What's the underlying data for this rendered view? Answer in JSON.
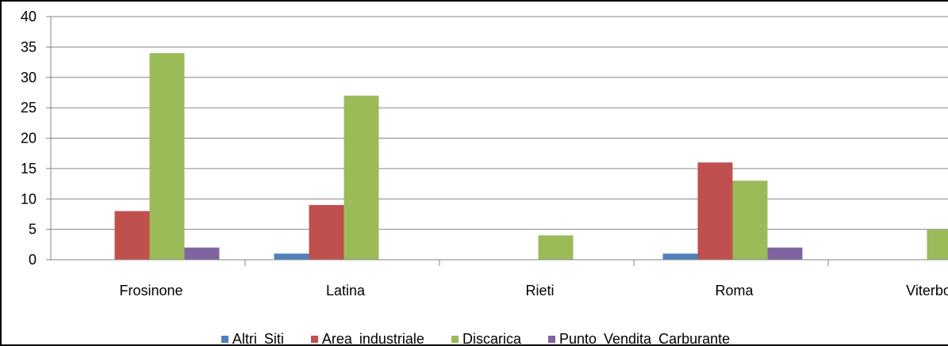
{
  "chart_data": {
    "type": "bar",
    "categories": [
      "Frosinone",
      "Latina",
      "Rieti",
      "Roma",
      "Viterbo"
    ],
    "series": [
      {
        "name": "Altri Siti",
        "color": "#4F81BD",
        "values": [
          0,
          1,
          0,
          1,
          0
        ]
      },
      {
        "name": "Area industriale",
        "color": "#C0504D",
        "values": [
          8,
          9,
          0,
          16,
          0
        ]
      },
      {
        "name": "Discarica",
        "color": "#9BBB59",
        "values": [
          34,
          27,
          4,
          13,
          5
        ]
      },
      {
        "name": "Punto Vendita Carburante",
        "color": "#8064A2",
        "values": [
          2,
          0,
          0,
          2,
          0
        ]
      }
    ],
    "ylim": [
      0,
      40
    ],
    "yticks": [
      0,
      5,
      10,
      15,
      20,
      25,
      30,
      35,
      40
    ],
    "grid": true,
    "legend": "bottom",
    "xlabel": "",
    "ylabel": "",
    "title": ""
  }
}
